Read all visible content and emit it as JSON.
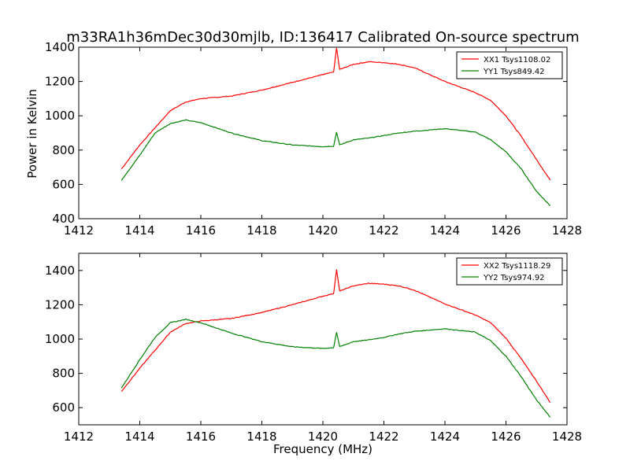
{
  "title": "m33RA1h36mDec30d30mjlb, ID:136417 Calibrated On-source spectrum",
  "ylabel_top": "Power in Kelvin",
  "xlabel_bottom": "Frequency (MHz)",
  "colors": {
    "xx": "#ff0000",
    "yy": "#008000"
  },
  "chart_data": [
    {
      "type": "line",
      "xlim": [
        1412,
        1428
      ],
      "ylim": [
        400,
        1400
      ],
      "x_ticks": [
        "1412",
        "1414",
        "1416",
        "1418",
        "1420",
        "1422",
        "1424",
        "1426",
        "1428"
      ],
      "y_ticks": [
        "400",
        "600",
        "800",
        "1000",
        "1200",
        "1400"
      ],
      "legend_position": "top-right",
      "grid": false,
      "series": [
        {
          "name": "XX1 Tsys1108.02",
          "x": [
            1413.4,
            1414.0,
            1414.5,
            1415.0,
            1415.5,
            1416.0,
            1417.0,
            1418.0,
            1419.0,
            1420.0,
            1420.35,
            1420.45,
            1420.55,
            1421.0,
            1421.5,
            1422.0,
            1422.5,
            1423.0,
            1424.0,
            1425.0,
            1425.5,
            1426.0,
            1426.5,
            1427.0,
            1427.45
          ],
          "values": [
            690,
            830,
            930,
            1030,
            1080,
            1100,
            1115,
            1150,
            1195,
            1240,
            1255,
            1395,
            1270,
            1300,
            1315,
            1310,
            1300,
            1280,
            1200,
            1135,
            1090,
            1000,
            880,
            745,
            625
          ]
        },
        {
          "name": "YY1 Tsys849.42",
          "x": [
            1413.4,
            1414.0,
            1414.5,
            1415.0,
            1415.5,
            1416.0,
            1417.0,
            1418.0,
            1419.0,
            1420.0,
            1420.35,
            1420.45,
            1420.55,
            1421.0,
            1421.5,
            1422.0,
            1422.5,
            1423.0,
            1424.0,
            1425.0,
            1425.5,
            1426.0,
            1426.5,
            1427.0,
            1427.45
          ],
          "values": [
            625,
            770,
            900,
            955,
            975,
            960,
            900,
            855,
            830,
            820,
            823,
            905,
            830,
            860,
            870,
            885,
            900,
            910,
            925,
            905,
            860,
            790,
            690,
            560,
            475
          ]
        }
      ]
    },
    {
      "type": "line",
      "xlim": [
        1412,
        1428
      ],
      "ylim": [
        500,
        1500
      ],
      "x_ticks": [
        "1412",
        "1414",
        "1416",
        "1418",
        "1420",
        "1422",
        "1424",
        "1426",
        "1428"
      ],
      "y_ticks": [
        "600",
        "800",
        "1000",
        "1200",
        "1400"
      ],
      "legend_position": "top-right",
      "grid": false,
      "series": [
        {
          "name": "XX2 Tsys1118.29",
          "x": [
            1413.4,
            1414.0,
            1414.5,
            1415.0,
            1415.5,
            1416.0,
            1417.0,
            1418.0,
            1419.0,
            1420.0,
            1420.35,
            1420.45,
            1420.55,
            1421.0,
            1421.5,
            1422.0,
            1422.5,
            1423.0,
            1424.0,
            1425.0,
            1425.5,
            1426.0,
            1426.5,
            1427.0,
            1427.45
          ],
          "values": [
            695,
            830,
            935,
            1040,
            1090,
            1105,
            1120,
            1155,
            1200,
            1250,
            1265,
            1405,
            1280,
            1310,
            1325,
            1320,
            1310,
            1285,
            1205,
            1140,
            1095,
            1005,
            885,
            755,
            630
          ]
        },
        {
          "name": "YY2 Tsys974.92",
          "x": [
            1413.4,
            1414.0,
            1414.5,
            1415.0,
            1415.5,
            1416.0,
            1417.0,
            1418.0,
            1419.0,
            1420.0,
            1420.35,
            1420.45,
            1420.55,
            1421.0,
            1421.5,
            1422.0,
            1422.5,
            1423.0,
            1424.0,
            1425.0,
            1425.5,
            1426.0,
            1426.5,
            1427.0,
            1427.45
          ],
          "values": [
            715,
            880,
            1010,
            1095,
            1115,
            1095,
            1035,
            985,
            955,
            945,
            950,
            1040,
            955,
            985,
            995,
            1010,
            1030,
            1045,
            1060,
            1040,
            990,
            900,
            780,
            645,
            545
          ]
        }
      ]
    }
  ]
}
